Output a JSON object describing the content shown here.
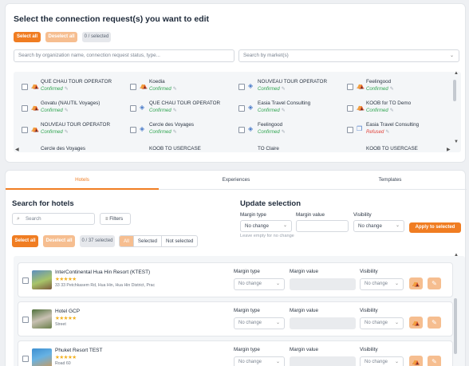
{
  "edit": {
    "title": "Select the connection request(s) you want to edit",
    "select_all": "Select all",
    "deselect_all": "Deselect all",
    "selected_count": "0 / selected",
    "search_placeholder": "Search by organization name, connection request status, type...",
    "market_placeholder": "Search by market(s)",
    "requests": [
      {
        "name": "QUE CHAU TOUR OPERATOR",
        "status": "Confirmed",
        "icon": "bed-icon"
      },
      {
        "name": "Koedia",
        "status": "Confirmed",
        "icon": "bed-icon"
      },
      {
        "name": "NOUVEAU TOUR OPERATOR",
        "status": "Confirmed",
        "icon": "layers-icon"
      },
      {
        "name": "Feelingood",
        "status": "Confirmed",
        "icon": "bed-icon"
      },
      {
        "name": "Govatu (NAUTIL Voyages)",
        "status": "Confirmed",
        "icon": "bed-icon"
      },
      {
        "name": "QUE CHAU TOUR OPERATOR",
        "status": "Confirmed",
        "icon": "layers-icon"
      },
      {
        "name": "Easia Travel Consulting",
        "status": "Confirmed",
        "icon": "layers-icon"
      },
      {
        "name": "KOOB for TO Demo",
        "status": "Confirmed",
        "icon": "bed-icon"
      },
      {
        "name": "NOUVEAU TOUR OPERATOR",
        "status": "Confirmed",
        "icon": "bed-icon"
      },
      {
        "name": "Cercle des Voyages",
        "status": "Confirmed",
        "icon": "layers-icon"
      },
      {
        "name": "Feelingood",
        "status": "Confirmed",
        "icon": "layers-icon"
      },
      {
        "name": "Easia Travel Consulting",
        "status": "Refused",
        "icon": "copy-icon"
      },
      {
        "name": "Cercle des Voyages",
        "status": "",
        "icon": ""
      },
      {
        "name": "KOOB TO USERCASE",
        "status": "",
        "icon": ""
      },
      {
        "name": "TO Claire",
        "status": "",
        "icon": ""
      },
      {
        "name": "KOOB TO USERCASE",
        "status": "",
        "icon": ""
      }
    ]
  },
  "tabs": [
    "Hotels",
    "Experiences",
    "Templates"
  ],
  "hotels_search": {
    "title": "Search for hotels",
    "search_placeholder": "Search",
    "filters": "Filters",
    "select_all": "Select all",
    "deselect_all": "Deselect all",
    "selected_count": "0 / 37 selected",
    "segments": [
      "All",
      "Selected",
      "Not selected"
    ]
  },
  "update": {
    "title": "Update selection",
    "margin_type_label": "Margin type",
    "margin_type_value": "No change",
    "margin_value_label": "Margin value",
    "visibility_label": "Visibility",
    "visibility_value": "No change",
    "apply": "Apply to selected",
    "hint": "Leave empty for no change"
  },
  "hotels": [
    {
      "name": "InterContinental Hua Hin Resort (KTEST)",
      "stars": "★★★★★",
      "address": "33 33 Petchkasem Rd, Hua Hin, Hua Hin District, Prac",
      "margin_type": "No change",
      "visibility": "No change"
    },
    {
      "name": "Hotel GCP",
      "stars": "★★★★★",
      "address": "Street",
      "margin_type": "No change",
      "visibility": "No change"
    },
    {
      "name": "Phuket Resort TEST",
      "stars": "★★★★★",
      "address": "Road 60",
      "margin_type": "No change",
      "visibility": "No change"
    }
  ],
  "hotel_field_labels": {
    "margin_type": "Margin type",
    "margin_value": "Margin value",
    "visibility": "Visibility"
  },
  "colors": {
    "accent": "#f07d22",
    "accent_light": "#f6be90",
    "confirmed": "#2ea44f",
    "refused": "#e0413a"
  }
}
